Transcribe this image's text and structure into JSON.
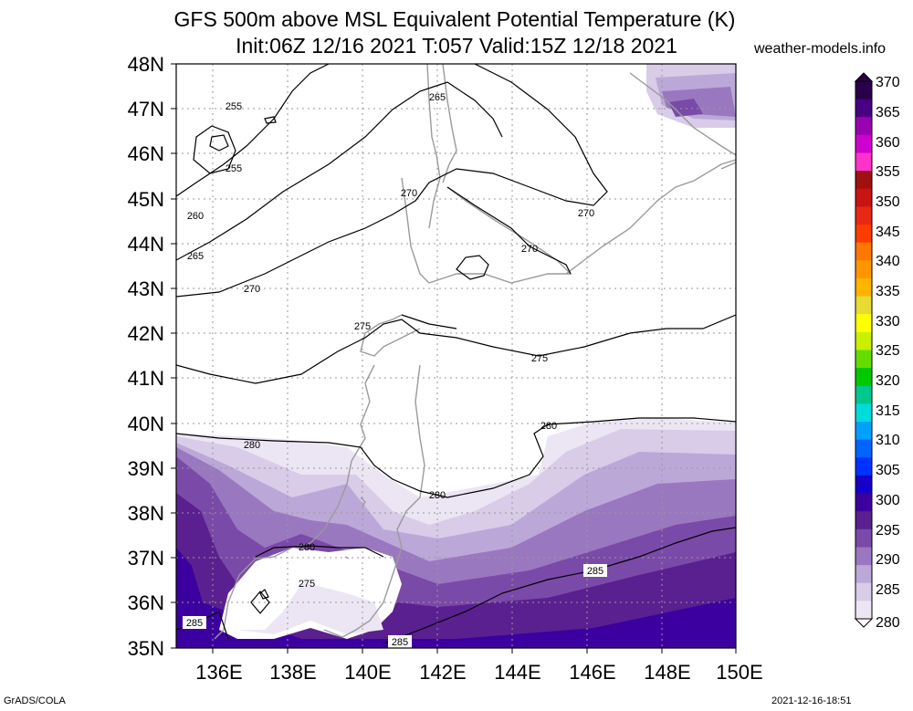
{
  "header": {
    "title_line1": "GFS 500m above MSL Equivalent Potential Temperature (K)",
    "title_line2": "Init:06Z 12/16 2021 T:057 Valid:15Z 12/18 2021",
    "site": "weather-models.info"
  },
  "footer": {
    "left": "GrADS/COLA",
    "right": "2021-12-16-18:51"
  },
  "map": {
    "lat_labels": [
      "48N",
      "47N",
      "46N",
      "45N",
      "44N",
      "43N",
      "42N",
      "41N",
      "40N",
      "39N",
      "38N",
      "37N",
      "36N",
      "35N"
    ],
    "lon_labels": [
      "136E",
      "138E",
      "140E",
      "142E",
      "144E",
      "146E",
      "148E",
      "150E"
    ],
    "contour_labels": [
      "255",
      "255",
      "260",
      "265",
      "265",
      "270",
      "270",
      "270",
      "270",
      "275",
      "275",
      "280",
      "280",
      "280",
      "280",
      "275",
      "285",
      "285",
      "285"
    ]
  },
  "colorbar": {
    "labels": [
      "370",
      "365",
      "360",
      "355",
      "350",
      "345",
      "340",
      "335",
      "330",
      "325",
      "320",
      "315",
      "310",
      "305",
      "300",
      "295",
      "290",
      "285",
      "280"
    ],
    "colors": [
      "#2a004a",
      "#4a0082",
      "#9a00b0",
      "#d000d0",
      "#ff33cc",
      "#a01010",
      "#c81414",
      "#e62814",
      "#ff3c00",
      "#ff7800",
      "#ff9600",
      "#ffb400",
      "#e6dc32",
      "#ffff00",
      "#c8f000",
      "#64dc00",
      "#00c800",
      "#00c88c",
      "#00dcdc",
      "#00a0ff",
      "#0064ff",
      "#0032ff",
      "#1400c8",
      "#3c00a0",
      "#5a2090",
      "#7a4aa8",
      "#9a78c0",
      "#bca8d8",
      "#d8cce8",
      "#ece6f4"
    ]
  }
}
